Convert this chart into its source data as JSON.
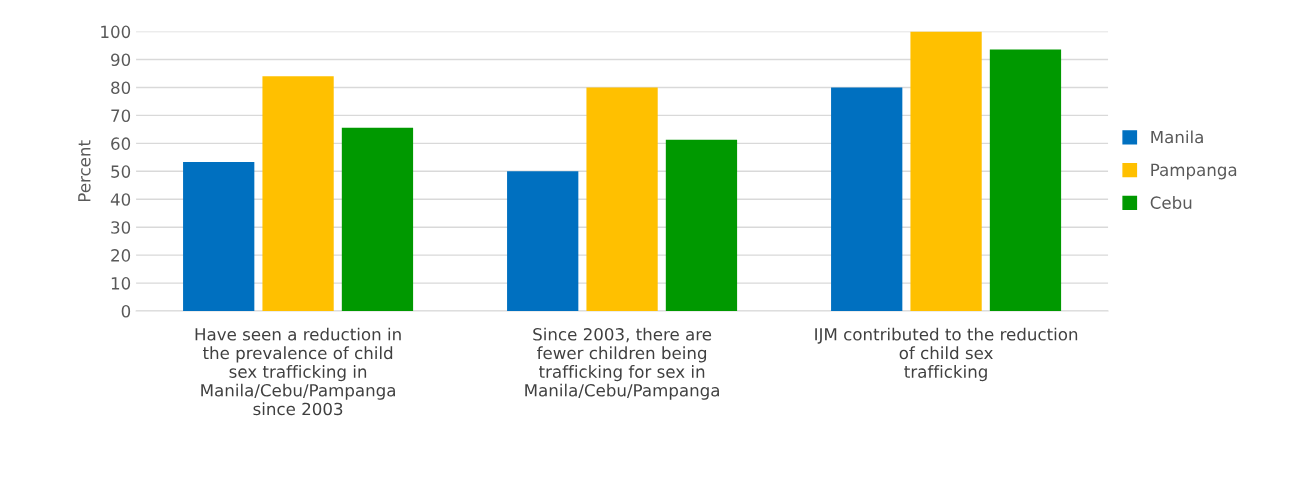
{
  "chart_data": {
    "type": "bar",
    "ylabel": "Percent",
    "categories": [
      "Have seen a reduction in\nthe prevalence of child\nsex trafficking in\nManila/Cebu/Pampanga\nsince 2003",
      "Since 2003, there are\nfewer children being\ntrafficking for sex in\nManila/Cebu/Pampanga",
      "IJM contributed to the reduction\nof child sex\ntrafficking"
    ],
    "series": [
      {
        "name": "Manila",
        "color": "#0070c0",
        "values": [
          53.3,
          50,
          80
        ]
      },
      {
        "name": "Pampanga",
        "color": "#ffc000",
        "values": [
          84,
          80,
          100
        ]
      },
      {
        "name": "Cebu",
        "color": "#009900",
        "values": [
          65.6,
          61.3,
          93.6
        ]
      }
    ],
    "ylim": [
      0,
      100
    ],
    "yticks": [
      0,
      10,
      20,
      30,
      40,
      50,
      60,
      70,
      80,
      90,
      100
    ],
    "grid": "y",
    "legend": "right"
  }
}
